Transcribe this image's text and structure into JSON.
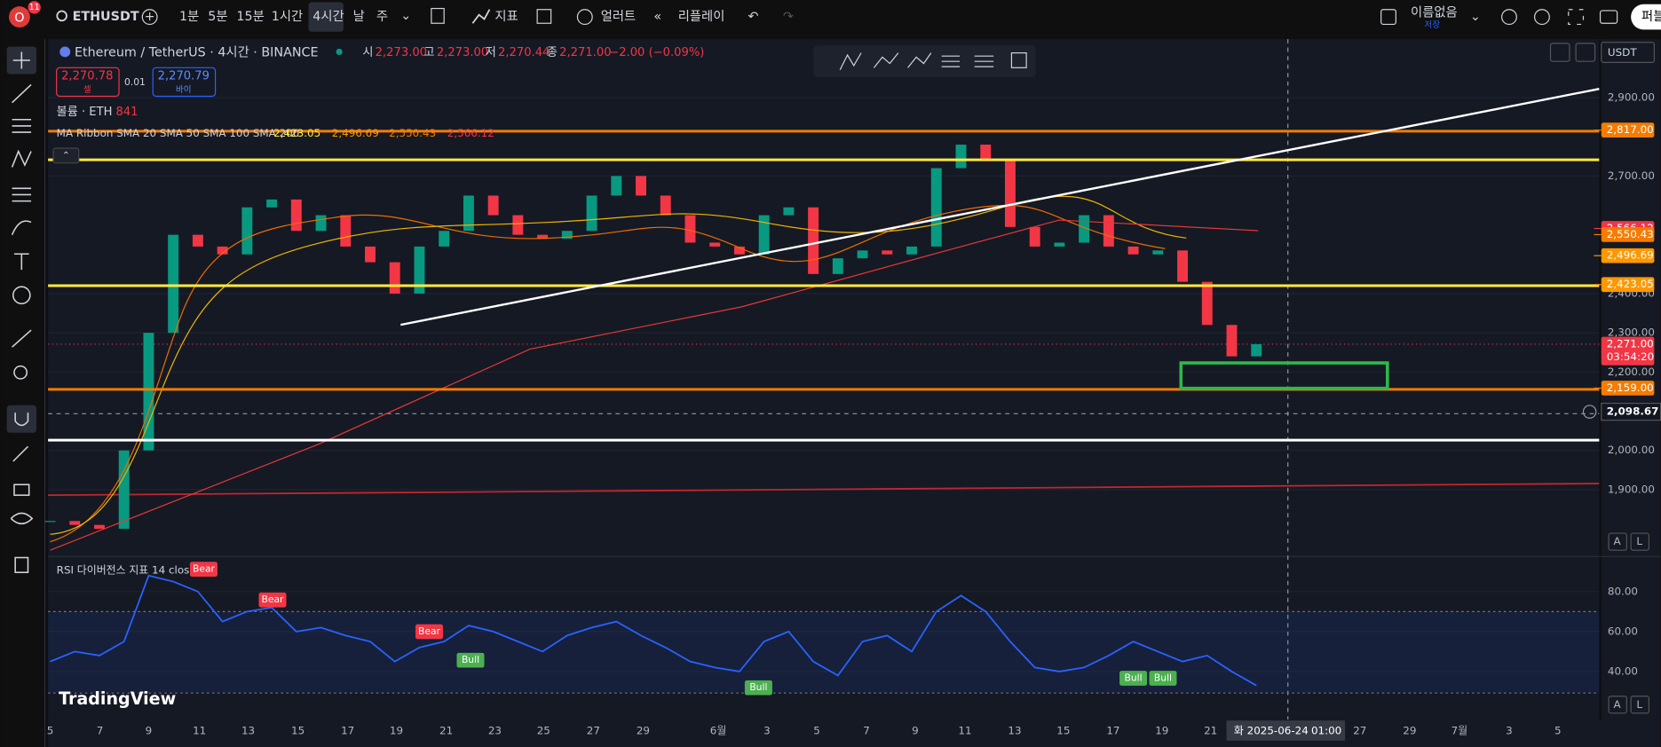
{
  "toolbar": {
    "badge": "11",
    "symbol": "ETHUSDT",
    "intervals": [
      "1분",
      "5분",
      "15분",
      "1시간",
      "4시간",
      "날",
      "주"
    ],
    "indicators": "지표",
    "alert": "얼러트",
    "replay": "리플레이",
    "layout_name": "이름없음",
    "save": "저장",
    "publish": "퍼블"
  },
  "legend": {
    "title": "Ethereum / TetherUS · 4시간 · BINANCE",
    "open_label": "시",
    "open": "2,273.00",
    "high_label": "고",
    "high": "2,273.00",
    "low_label": "저",
    "low": "2,270.44",
    "close_label": "종",
    "close": "2,271.00",
    "change": "−2.00 (−0.09%)",
    "sell_price": "2,270.78",
    "sell": "셀",
    "spread": "0.01",
    "buy_price": "2,270.79",
    "buy": "바이",
    "volume_label": "볼륨 · ETH",
    "volume": "841",
    "ma_label": "MA Ribbon SMA 20 SMA 50 SMA 100 SMA 200",
    "ma_values": [
      "2,423.05",
      "2,496.69",
      "2,550.43",
      "2,566.12"
    ],
    "rsi_label": "RSI 다이버전스 지표 14 close"
  },
  "currency": "USDT",
  "watermark": "TradingView",
  "scale_buttons": [
    "A",
    "L"
  ],
  "crosshair": {
    "date": "화 2025-06-24",
    "time": "01:00",
    "price": {
      "value": 2098.67,
      "label": "2,098.67"
    }
  },
  "current_price": {
    "value": 2271,
    "label": "2,271.00",
    "countdown": "03:54:20"
  },
  "price_tags": [
    {
      "value": 2817,
      "label": "2,817.00",
      "color": "#f57c00"
    },
    {
      "value": 2566.12,
      "label": "2,566.12",
      "color": "#f23645"
    },
    {
      "value": 2550.43,
      "label": "2,550.43",
      "color": "#f57c00"
    },
    {
      "value": 2496.69,
      "label": "2,496.69",
      "color": "#ff9800"
    },
    {
      "value": 2423.05,
      "label": "2,423.05",
      "color": "#ff9800"
    },
    {
      "value": 2159,
      "label": "2,159.00",
      "color": "#f57c00"
    }
  ],
  "chart_data": [
    {
      "type": "candlestick",
      "ylim": [
        1732,
        3049
      ],
      "yticks": [
        {
          "value": 2900,
          "label": "2,900.00"
        },
        {
          "value": 2700,
          "label": "2,700.00"
        },
        {
          "value": 2400,
          "label": "2,400.00"
        },
        {
          "value": 2300,
          "label": "2,300.00"
        },
        {
          "value": 2200,
          "label": "2,200.00"
        },
        {
          "value": 2000,
          "label": "2,000.00"
        },
        {
          "value": 1900,
          "label": "1,900.00"
        }
      ],
      "up_color": "#089981",
      "down_color": "#f23645",
      "values": [
        1820,
        1810,
        1800,
        2000,
        2300,
        2550,
        2520,
        2500,
        2620,
        2640,
        2560,
        2600,
        2520,
        2480,
        2400,
        2520,
        2560,
        2650,
        2600,
        2550,
        2540,
        2560,
        2650,
        2700,
        2650,
        2600,
        2530,
        2520,
        2500,
        2600,
        2620,
        2450,
        2490,
        2510,
        2500,
        2520,
        2720,
        2780,
        2740,
        2570,
        2520,
        2530,
        2600,
        2520,
        2500,
        2510,
        2430,
        2320,
        2240,
        2271
      ]
    },
    {
      "type": "line",
      "color": "#2962ff",
      "ylim": [
        16,
        97
      ],
      "yticks": [
        {
          "value": 80,
          "label": "80.00"
        },
        {
          "value": 60,
          "label": "60.00"
        },
        {
          "value": 40,
          "label": "40.00"
        }
      ],
      "values": [
        45,
        50,
        48,
        55,
        88,
        85,
        80,
        65,
        70,
        72,
        60,
        62,
        58,
        55,
        45,
        52,
        55,
        63,
        60,
        55,
        50,
        58,
        62,
        65,
        58,
        52,
        45,
        42,
        40,
        55,
        60,
        45,
        38,
        55,
        58,
        50,
        70,
        78,
        70,
        55,
        42,
        40,
        42,
        48,
        55,
        50,
        45,
        48,
        40,
        33
      ],
      "signals": [
        "Bear",
        "Bear",
        "Bear",
        "Bull",
        "Bull",
        "Bull",
        "Bull"
      ]
    }
  ],
  "time_axis": [
    "5",
    "7",
    "9",
    "11",
    "13",
    "15",
    "17",
    "19",
    "21",
    "23",
    "25",
    "27",
    "29",
    "6월",
    "3",
    "5",
    "7",
    "9",
    "11",
    "13",
    "15",
    "17",
    "19",
    "21",
    "27",
    "29",
    "7월",
    "3",
    "5"
  ]
}
